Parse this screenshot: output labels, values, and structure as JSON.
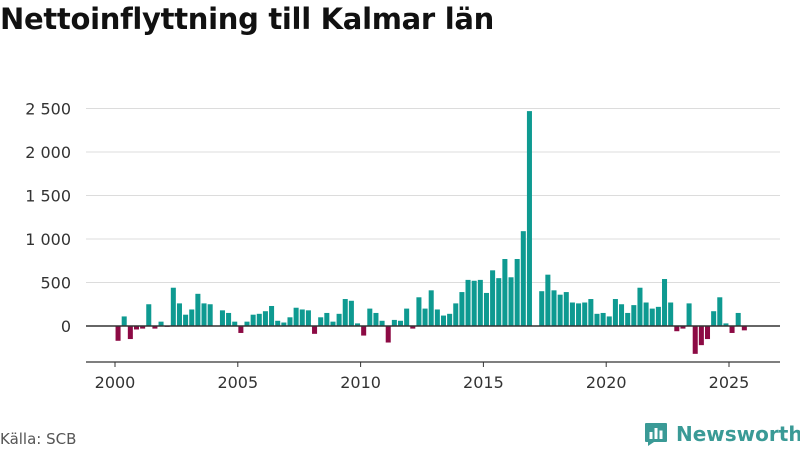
{
  "chart_data": {
    "type": "bar",
    "title": "Nettoinflyttning till Kalmar län",
    "xlabel": "",
    "ylabel": "",
    "x_start": 2000.0,
    "x_step": 0.25,
    "xlim": [
      1998.7,
      2026.5
    ],
    "ylim": [
      -350,
      2550
    ],
    "yticks": [
      0,
      500,
      1000,
      1500,
      2000,
      2500
    ],
    "ytick_labels": [
      "0",
      "500",
      "1 000",
      "1 500",
      "2 000",
      "2 500"
    ],
    "xticks": [
      2000,
      2005,
      2010,
      2015,
      2020,
      2025
    ],
    "xtick_labels": [
      "2000",
      "2005",
      "2010",
      "2015",
      "2020",
      "2025"
    ],
    "grid": true,
    "colors": {
      "positive": "#0e9a91",
      "negative": "#8c0a44",
      "axis": "#333333",
      "grid": "#dcdcdc"
    },
    "values": [
      -170,
      110,
      -150,
      -40,
      -30,
      250,
      -30,
      50,
      -10,
      440,
      260,
      130,
      190,
      370,
      260,
      250,
      0,
      180,
      150,
      50,
      -80,
      50,
      130,
      140,
      170,
      230,
      60,
      40,
      100,
      210,
      190,
      180,
      -90,
      100,
      150,
      50,
      140,
      310,
      290,
      30,
      -110,
      200,
      150,
      60,
      -190,
      70,
      60,
      200,
      -30,
      330,
      200,
      410,
      190,
      120,
      140,
      260,
      390,
      530,
      520,
      530,
      380,
      640,
      550,
      770,
      560,
      770,
      1090,
      2470,
      0,
      400,
      590,
      410,
      360,
      390,
      270,
      260,
      270,
      310,
      140,
      150,
      110,
      310,
      250,
      150,
      240,
      440,
      270,
      200,
      220,
      540,
      270,
      -60,
      -30,
      260,
      -320,
      -220,
      -150,
      170,
      330,
      30,
      -80,
      150,
      -50
    ]
  },
  "source": "Källa: SCB",
  "brand": {
    "name": "Newsworthy",
    "color": "#3a9a96"
  }
}
